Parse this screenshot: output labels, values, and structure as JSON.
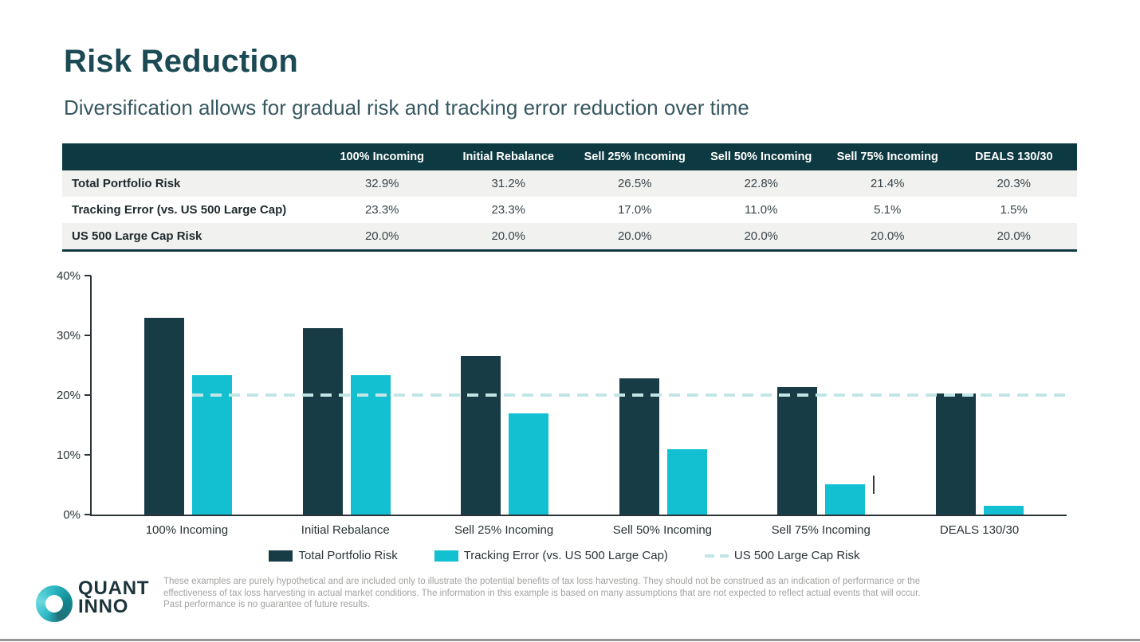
{
  "slide": {
    "title": "Risk Reduction",
    "subtitle": "Diversification allows for gradual risk and tracking error reduction over time"
  },
  "table": {
    "columns": [
      "100% Incoming",
      "Initial Rebalance",
      "Sell 25% Incoming",
      "Sell 50% Incoming",
      "Sell 75% Incoming",
      "DEALS 130/30"
    ],
    "rows": [
      {
        "label": "Total Portfolio Risk",
        "values": [
          "32.9%",
          "31.2%",
          "26.5%",
          "22.8%",
          "21.4%",
          "20.3%"
        ]
      },
      {
        "label": "Tracking Error (vs. US 500 Large Cap)",
        "values": [
          "23.3%",
          "23.3%",
          "17.0%",
          "11.0%",
          "5.1%",
          "1.5%"
        ]
      },
      {
        "label": "US 500 Large Cap Risk",
        "values": [
          "20.0%",
          "20.0%",
          "20.0%",
          "20.0%",
          "20.0%",
          "20.0%"
        ]
      }
    ]
  },
  "chart_data": {
    "type": "bar",
    "categories": [
      "100% Incoming",
      "Initial Rebalance",
      "Sell 25% Incoming",
      "Sell 50% Incoming",
      "Sell 75% Incoming",
      "DEALS 130/30"
    ],
    "series": [
      {
        "name": "Total Portfolio Risk",
        "color": "dark",
        "values": [
          32.9,
          31.2,
          26.5,
          22.8,
          21.4,
          20.3
        ]
      },
      {
        "name": "Tracking Error (vs. US 500 Large Cap)",
        "color": "cyan",
        "values": [
          23.3,
          23.3,
          17.0,
          11.0,
          5.1,
          1.5
        ]
      }
    ],
    "reference_line": {
      "name": "US 500 Large Cap Risk",
      "value": 20.0,
      "style": "dashed"
    },
    "title": "",
    "xlabel": "",
    "ylabel": "",
    "ylim": [
      0,
      40
    ],
    "yticks": [
      "0%",
      "10%",
      "20%",
      "30%",
      "40%"
    ],
    "grid": false,
    "legend_position": "bottom"
  },
  "legend": [
    {
      "label": "Total Portfolio Risk",
      "swatch": "dark"
    },
    {
      "label": "Tracking Error (vs. US 500 Large Cap)",
      "swatch": "cyan"
    },
    {
      "label": "US 500 Large Cap Risk",
      "swatch": "dash"
    }
  ],
  "footer": {
    "logo_line1": "QUANT",
    "logo_line2": "INNO",
    "disclaimer_lines": [
      "These examples are purely hypothetical and are included only to illustrate the potential benefits of tax loss harvesting. They should not be construed as an indication of performance or the",
      "effectiveness of tax loss harvesting in actual market conditions. The information in this example is based on many assumptions that are not expected to reflect actual events that will occur.",
      "Past performance is no guarantee of future results."
    ]
  },
  "colors": {
    "title_text": "#1b4a54",
    "subtitle_text": "#375861",
    "table_header_bg": "#0d3a42",
    "table_stripe_bg": "#f1f1ef",
    "bar_dark": "#183c46",
    "bar_cyan": "#12c0d2",
    "reference_dash": "#c2e5e6",
    "axis_text": "#2b3437",
    "disclaimer_text": "#a3a3a1"
  }
}
